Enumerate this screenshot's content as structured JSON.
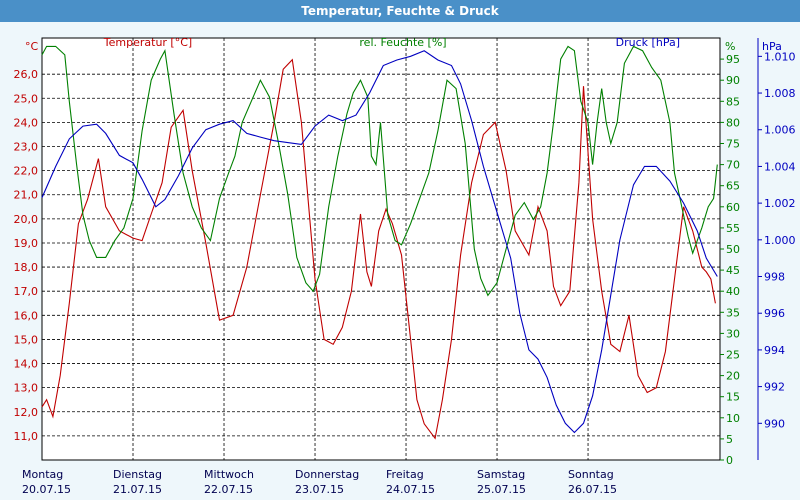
{
  "window": {
    "title": "Temperatur, Feuchte & Druck"
  },
  "chart_data": {
    "type": "line",
    "x_unit": "date",
    "x_range": [
      "20.07.15",
      "27.07.15"
    ],
    "x_ticks": [
      {
        "day": "Montag",
        "date": "20.07.15"
      },
      {
        "day": "Dienstag",
        "date": "21.07.15"
      },
      {
        "day": "Mittwoch",
        "date": "22.07.15"
      },
      {
        "day": "Donnerstag",
        "date": "23.07.15"
      },
      {
        "day": "Freitag",
        "date": "24.07.15"
      },
      {
        "day": "Samstag",
        "date": "25.07.15"
      },
      {
        "day": "Sonntag",
        "date": "26.07.15"
      }
    ],
    "grid": true,
    "axes": {
      "temperature": {
        "title": "Temperatur [°C]",
        "unit": "°C",
        "color": "#c00000",
        "range": [
          10,
          27.5
        ],
        "ticks": [
          "11,0",
          "12,0",
          "13,0",
          "14,0",
          "15,0",
          "16,0",
          "17,0",
          "18,0",
          "19,0",
          "20,0",
          "21,0",
          "22,0",
          "23,0",
          "24,0",
          "25,0",
          "26,0"
        ]
      },
      "humidity": {
        "title": "rel. Feuchte [%]",
        "unit": "%",
        "color": "#008000",
        "range": [
          0,
          100
        ],
        "ticks": [
          "0",
          "5",
          "10",
          "15",
          "20",
          "25",
          "30",
          "35",
          "40",
          "45",
          "50",
          "55",
          "60",
          "65",
          "70",
          "75",
          "80",
          "85",
          "90",
          "95"
        ]
      },
      "pressure": {
        "unit": "hPa",
        "color": "#0000c0",
        "range": [
          988,
          1011
        ],
        "ticks": [
          "990",
          "992",
          "994",
          "996",
          "998",
          "1.000",
          "1.002",
          "1.004",
          "1.006",
          "1.008",
          "1.010"
        ]
      }
    },
    "series": [
      {
        "name": "Temperatur [°C]",
        "axis": "temperature",
        "color": "#c00000",
        "points": [
          [
            0,
            12.2
          ],
          [
            0.05,
            12.5
          ],
          [
            0.12,
            11.8
          ],
          [
            0.2,
            13.5
          ],
          [
            0.3,
            16.5
          ],
          [
            0.4,
            19.8
          ],
          [
            0.5,
            20.8
          ],
          [
            0.62,
            22.5
          ],
          [
            0.7,
            20.5
          ],
          [
            0.85,
            19.5
          ],
          [
            1.0,
            19.2
          ],
          [
            1.1,
            19.1
          ],
          [
            1.2,
            20.2
          ],
          [
            1.32,
            21.5
          ],
          [
            1.42,
            23.8
          ],
          [
            1.55,
            24.5
          ],
          [
            1.65,
            22.0
          ],
          [
            1.8,
            19.0
          ],
          [
            1.95,
            15.8
          ],
          [
            2.1,
            16.0
          ],
          [
            2.25,
            18.0
          ],
          [
            2.4,
            21.0
          ],
          [
            2.55,
            24.0
          ],
          [
            2.65,
            26.2
          ],
          [
            2.75,
            26.6
          ],
          [
            2.85,
            24.0
          ],
          [
            3.0,
            17.5
          ],
          [
            3.1,
            15.0
          ],
          [
            3.2,
            14.8
          ],
          [
            3.3,
            15.5
          ],
          [
            3.4,
            17.0
          ],
          [
            3.5,
            20.2
          ],
          [
            3.57,
            17.8
          ],
          [
            3.62,
            17.2
          ],
          [
            3.7,
            19.5
          ],
          [
            3.78,
            20.4
          ],
          [
            3.85,
            19.8
          ],
          [
            3.95,
            18.5
          ],
          [
            4.05,
            15.0
          ],
          [
            4.12,
            12.5
          ],
          [
            4.2,
            11.5
          ],
          [
            4.32,
            10.9
          ],
          [
            4.4,
            12.5
          ],
          [
            4.5,
            15.0
          ],
          [
            4.6,
            18.5
          ],
          [
            4.72,
            21.5
          ],
          [
            4.85,
            23.5
          ],
          [
            4.98,
            24.0
          ],
          [
            5.1,
            22.0
          ],
          [
            5.2,
            19.5
          ],
          [
            5.35,
            18.5
          ],
          [
            5.45,
            20.5
          ],
          [
            5.55,
            19.5
          ],
          [
            5.62,
            17.2
          ],
          [
            5.7,
            16.4
          ],
          [
            5.8,
            17.0
          ],
          [
            5.9,
            21.5
          ],
          [
            5.95,
            25.5
          ],
          [
            6.05,
            20.0
          ],
          [
            6.15,
            17.0
          ],
          [
            6.25,
            14.8
          ],
          [
            6.35,
            14.5
          ],
          [
            6.45,
            16.0
          ],
          [
            6.55,
            13.5
          ],
          [
            6.65,
            12.8
          ],
          [
            6.75,
            13.0
          ],
          [
            6.85,
            14.5
          ],
          [
            6.95,
            17.5
          ],
          [
            7.05,
            20.5
          ],
          [
            7.15,
            19.5
          ],
          [
            7.25,
            18.0
          ],
          [
            7.3,
            17.8
          ],
          [
            7.35,
            17.5
          ],
          [
            7.4,
            16.5
          ]
        ]
      },
      {
        "name": "rel. Feuchte [%]",
        "axis": "humidity",
        "color": "#008000",
        "points": [
          [
            0,
            96
          ],
          [
            0.05,
            98
          ],
          [
            0.15,
            98
          ],
          [
            0.25,
            96
          ],
          [
            0.3,
            85
          ],
          [
            0.38,
            70
          ],
          [
            0.45,
            58
          ],
          [
            0.52,
            52
          ],
          [
            0.6,
            48
          ],
          [
            0.7,
            48
          ],
          [
            0.8,
            52
          ],
          [
            0.9,
            55
          ],
          [
            1.0,
            62
          ],
          [
            1.1,
            78
          ],
          [
            1.2,
            90
          ],
          [
            1.3,
            95
          ],
          [
            1.35,
            97
          ],
          [
            1.45,
            82
          ],
          [
            1.55,
            68
          ],
          [
            1.65,
            60
          ],
          [
            1.75,
            55
          ],
          [
            1.85,
            52
          ],
          [
            1.95,
            62
          ],
          [
            2.05,
            68
          ],
          [
            2.12,
            72
          ],
          [
            2.2,
            80
          ],
          [
            2.3,
            85
          ],
          [
            2.4,
            90
          ],
          [
            2.5,
            86
          ],
          [
            2.6,
            75
          ],
          [
            2.7,
            63
          ],
          [
            2.8,
            48
          ],
          [
            2.9,
            42
          ],
          [
            2.98,
            40
          ],
          [
            3.05,
            44
          ],
          [
            3.15,
            60
          ],
          [
            3.25,
            72
          ],
          [
            3.35,
            82
          ],
          [
            3.42,
            87
          ],
          [
            3.5,
            90
          ],
          [
            3.58,
            86
          ],
          [
            3.62,
            72
          ],
          [
            3.67,
            70
          ],
          [
            3.72,
            80
          ],
          [
            3.8,
            58
          ],
          [
            3.88,
            52
          ],
          [
            3.95,
            51
          ],
          [
            4.05,
            56
          ],
          [
            4.15,
            62
          ],
          [
            4.25,
            68
          ],
          [
            4.35,
            78
          ],
          [
            4.45,
            90
          ],
          [
            4.55,
            88
          ],
          [
            4.65,
            75
          ],
          [
            4.75,
            50
          ],
          [
            4.82,
            43
          ],
          [
            4.9,
            39
          ],
          [
            5.0,
            42
          ],
          [
            5.1,
            50
          ],
          [
            5.2,
            58
          ],
          [
            5.3,
            61
          ],
          [
            5.4,
            57
          ],
          [
            5.48,
            60
          ],
          [
            5.55,
            68
          ],
          [
            5.62,
            80
          ],
          [
            5.7,
            95
          ],
          [
            5.78,
            98
          ],
          [
            5.85,
            97
          ],
          [
            5.92,
            85
          ],
          [
            6.0,
            80
          ],
          [
            6.05,
            70
          ],
          [
            6.1,
            80
          ],
          [
            6.15,
            88
          ],
          [
            6.2,
            80
          ],
          [
            6.25,
            75
          ],
          [
            6.32,
            80
          ],
          [
            6.4,
            94
          ],
          [
            6.5,
            98
          ],
          [
            6.6,
            97
          ],
          [
            6.7,
            93
          ],
          [
            6.8,
            90
          ],
          [
            6.9,
            80
          ],
          [
            6.95,
            68
          ],
          [
            7.05,
            58
          ],
          [
            7.1,
            53
          ],
          [
            7.15,
            49
          ],
          [
            7.25,
            55
          ],
          [
            7.32,
            60
          ],
          [
            7.38,
            62
          ],
          [
            7.42,
            70
          ]
        ]
      },
      {
        "name": "Druck [hPa]",
        "axis": "pressure",
        "color": "#0000c0",
        "points": [
          [
            0,
            1002.3
          ],
          [
            0.15,
            1004.0
          ],
          [
            0.3,
            1005.5
          ],
          [
            0.45,
            1006.2
          ],
          [
            0.6,
            1006.3
          ],
          [
            0.7,
            1005.8
          ],
          [
            0.85,
            1004.6
          ],
          [
            1.0,
            1004.2
          ],
          [
            1.1,
            1003.3
          ],
          [
            1.25,
            1001.8
          ],
          [
            1.35,
            1002.2
          ],
          [
            1.5,
            1003.5
          ],
          [
            1.65,
            1005.0
          ],
          [
            1.8,
            1006.0
          ],
          [
            1.95,
            1006.3
          ],
          [
            2.1,
            1006.5
          ],
          [
            2.25,
            1005.8
          ],
          [
            2.4,
            1005.6
          ],
          [
            2.55,
            1005.4
          ],
          [
            2.7,
            1005.3
          ],
          [
            2.85,
            1005.2
          ],
          [
            3.0,
            1006.2
          ],
          [
            3.15,
            1006.8
          ],
          [
            3.3,
            1006.5
          ],
          [
            3.45,
            1006.8
          ],
          [
            3.6,
            1008.0
          ],
          [
            3.75,
            1009.5
          ],
          [
            3.9,
            1009.8
          ],
          [
            4.05,
            1010.0
          ],
          [
            4.2,
            1010.3
          ],
          [
            4.35,
            1009.8
          ],
          [
            4.5,
            1009.5
          ],
          [
            4.6,
            1008.5
          ],
          [
            4.72,
            1006.5
          ],
          [
            4.85,
            1004.0
          ],
          [
            5.0,
            1001.5
          ],
          [
            5.15,
            999.0
          ],
          [
            5.25,
            996.0
          ],
          [
            5.35,
            994.0
          ],
          [
            5.45,
            993.5
          ],
          [
            5.55,
            992.5
          ],
          [
            5.65,
            991.0
          ],
          [
            5.75,
            990.0
          ],
          [
            5.85,
            989.5
          ],
          [
            5.95,
            990.0
          ],
          [
            6.05,
            991.5
          ],
          [
            6.15,
            994.0
          ],
          [
            6.25,
            997.0
          ],
          [
            6.35,
            1000.0
          ],
          [
            6.5,
            1003.0
          ],
          [
            6.62,
            1004.0
          ],
          [
            6.75,
            1004.0
          ],
          [
            6.9,
            1003.2
          ],
          [
            7.05,
            1002.0
          ],
          [
            7.2,
            1000.5
          ],
          [
            7.3,
            999.0
          ],
          [
            7.42,
            998.0
          ]
        ]
      }
    ]
  }
}
